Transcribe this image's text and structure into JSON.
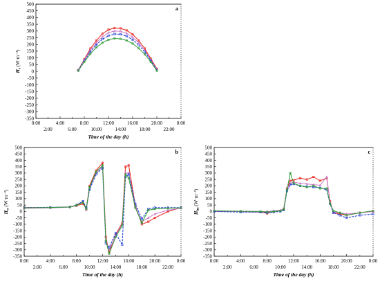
{
  "chart_data": [
    {
      "panel": "a",
      "type": "line",
      "xlabel": "Time of the day (h)",
      "ylabel_symbol": "H",
      "ylabel_sub": "s",
      "ylabel_unit": "(W·m⁻²)",
      "ylim": [
        -350,
        500
      ],
      "xlim": [
        0,
        24
      ],
      "yticks": [
        -350,
        -300,
        -250,
        -200,
        -150,
        -100,
        -50,
        0,
        50,
        100,
        150,
        200,
        250,
        300,
        350,
        400,
        450,
        500
      ],
      "xticks_top": [
        0,
        4,
        8,
        12,
        16,
        20,
        24
      ],
      "xticks_bottom": [
        2,
        6,
        10,
        14,
        18,
        22
      ],
      "xtick_labels_top": [
        "0:00",
        "4:00",
        "8:00",
        "12:00",
        "16:00",
        "20:00",
        "0:00"
      ],
      "xtick_labels_bottom": [
        "2:00",
        "6:00",
        "10:00",
        "14:00",
        "18:00",
        "22:00"
      ],
      "series": [
        {
          "color": "#e8221b",
          "x": [
            7,
            8,
            9,
            10,
            11,
            12,
            13,
            14,
            15,
            16,
            17,
            18,
            19,
            20
          ],
          "values": [
            10,
            90,
            170,
            230,
            280,
            310,
            322,
            320,
            305,
            275,
            230,
            170,
            95,
            20
          ]
        },
        {
          "color": "#c77ac8",
          "x": [
            7,
            8,
            9,
            10,
            11,
            12,
            13,
            14,
            15,
            16,
            17,
            18,
            19,
            20
          ],
          "values": [
            8,
            85,
            158,
            213,
            258,
            288,
            300,
            298,
            283,
            255,
            212,
            157,
            85,
            15
          ]
        },
        {
          "color": "#1f3fd6",
          "x": [
            7,
            8,
            9,
            10,
            11,
            12,
            13,
            14,
            15,
            16,
            17,
            18,
            19,
            20
          ],
          "values": [
            6,
            80,
            145,
            198,
            240,
            265,
            278,
            276,
            262,
            236,
            196,
            145,
            80,
            10
          ]
        },
        {
          "color": "#2e9a35",
          "x": [
            7,
            8,
            9,
            10,
            11,
            12,
            13,
            14,
            15,
            16,
            17,
            18,
            19,
            20
          ],
          "values": [
            5,
            70,
            130,
            178,
            213,
            235,
            245,
            242,
            230,
            207,
            172,
            127,
            70,
            5
          ]
        }
      ]
    },
    {
      "panel": "b",
      "type": "line",
      "xlabel": "Time of the day (h)",
      "ylabel_symbol": "H",
      "ylabel_sub": "w",
      "ylabel_unit": "(W·m⁻²)",
      "ylim": [
        -350,
        500
      ],
      "xlim": [
        0,
        24
      ],
      "yticks": [
        -350,
        -300,
        -250,
        -200,
        -150,
        -100,
        -50,
        0,
        50,
        100,
        150,
        200,
        250,
        300,
        350,
        400,
        450,
        500
      ],
      "xticks_top": [
        0,
        4,
        8,
        12,
        16,
        20,
        24
      ],
      "xticks_bottom": [
        2,
        6,
        10,
        14,
        18,
        22
      ],
      "xtick_labels_top": [
        "0:00",
        "4:00",
        "8:00",
        "12:00",
        "16:00",
        "20:00",
        "0:00"
      ],
      "xtick_labels_bottom": [
        "2:00",
        "6:00",
        "10:00",
        "14:00",
        "18:00",
        "22:00"
      ],
      "series": [
        {
          "color": "#e8221b",
          "x": [
            0,
            4,
            7,
            8,
            9,
            9.5,
            10,
            11,
            12,
            12.5,
            13,
            14,
            15,
            15.5,
            16,
            17,
            18,
            19,
            20,
            22,
            24
          ],
          "values": [
            30,
            30,
            35,
            45,
            60,
            20,
            200,
            320,
            380,
            -200,
            -320,
            -180,
            -90,
            350,
            360,
            50,
            -100,
            -80,
            -50,
            0,
            30
          ]
        },
        {
          "color": "#c77ac8",
          "x": [
            0,
            4,
            7,
            8,
            9,
            9.5,
            10,
            11,
            12,
            12.5,
            13,
            14,
            15,
            15.5,
            16,
            17,
            18,
            19,
            20,
            22,
            24
          ],
          "values": [
            25,
            28,
            33,
            50,
            80,
            10,
            180,
            300,
            350,
            -230,
            -300,
            -190,
            -100,
            300,
            300,
            40,
            -80,
            -50,
            -20,
            10,
            25
          ]
        },
        {
          "color": "#1f3fd6",
          "x": [
            0,
            4,
            7,
            8,
            9,
            9.5,
            10,
            11,
            12,
            12.5,
            13,
            14,
            15,
            15.5,
            16,
            17,
            18,
            19,
            20,
            22,
            24
          ],
          "values": [
            30,
            32,
            35,
            50,
            80,
            30,
            170,
            290,
            340,
            -250,
            -280,
            -170,
            -260,
            270,
            290,
            60,
            -60,
            20,
            30,
            30,
            30
          ]
        },
        {
          "color": "#2e9a35",
          "x": [
            0,
            4,
            7,
            8,
            9,
            9.5,
            10,
            11,
            12,
            12.5,
            13,
            14,
            15,
            15.5,
            16,
            17,
            18,
            19,
            20,
            22,
            24
          ],
          "values": [
            28,
            30,
            35,
            48,
            70,
            20,
            190,
            310,
            360,
            -230,
            -330,
            -200,
            -110,
            290,
            260,
            30,
            -90,
            10,
            20,
            25,
            28
          ]
        }
      ]
    },
    {
      "panel": "c",
      "type": "line",
      "xlabel": "Time of the day (h)",
      "ylabel_symbol": "H",
      "ylabel_sub": "ha",
      "ylabel_unit": "(W·m⁻²)",
      "ylim": [
        -350,
        500
      ],
      "xlim": [
        0,
        24
      ],
      "yticks": [
        -350,
        -300,
        -250,
        -200,
        -150,
        -100,
        -50,
        0,
        50,
        100,
        150,
        200,
        250,
        300,
        350,
        400,
        450,
        500
      ],
      "xticks_top": [
        0,
        4,
        8,
        12,
        16,
        20,
        24
      ],
      "xticks_bottom": [
        2,
        6,
        10,
        14,
        18,
        22
      ],
      "xtick_labels_top": [
        "0:00",
        "4:00",
        "8:00",
        "12:00",
        "16:00",
        "20:00",
        "0:00"
      ],
      "xtick_labels_bottom": [
        "2:00",
        "6:00",
        "10:00",
        "14:00",
        "18:00",
        "22:00"
      ],
      "series": [
        {
          "color": "#e8221b",
          "x": [
            0,
            4,
            7,
            8,
            9,
            10,
            10.5,
            11,
            11.5,
            12,
            13,
            14,
            15,
            16,
            17,
            17.5,
            18,
            19,
            20,
            22,
            24
          ],
          "values": [
            0,
            0,
            -5,
            -15,
            0,
            5,
            20,
            180,
            240,
            245,
            260,
            250,
            270,
            240,
            260,
            80,
            -10,
            -20,
            -30,
            -10,
            0
          ]
        },
        {
          "color": "#c77ac8",
          "x": [
            0,
            4,
            7,
            8,
            9,
            10,
            10.5,
            11,
            11.5,
            12,
            13,
            14,
            15,
            16,
            17,
            17.5,
            18,
            19,
            20,
            22,
            24
          ],
          "values": [
            2,
            0,
            0,
            0,
            5,
            10,
            20,
            170,
            220,
            230,
            220,
            215,
            210,
            205,
            270,
            70,
            -5,
            -10,
            -20,
            -10,
            0
          ]
        },
        {
          "color": "#1f3fd6",
          "x": [
            0,
            4,
            7,
            8,
            9,
            10,
            10.5,
            11,
            11.5,
            12,
            13,
            14,
            15,
            16,
            17,
            17.5,
            18,
            19,
            20,
            22,
            24
          ],
          "values": [
            0,
            -5,
            -5,
            -10,
            -5,
            0,
            10,
            160,
            210,
            215,
            200,
            195,
            190,
            185,
            170,
            60,
            -10,
            -30,
            -50,
            -30,
            -20
          ]
        },
        {
          "color": "#2e9a35",
          "x": [
            0,
            4,
            7,
            8,
            9,
            10,
            10.5,
            11,
            11.5,
            12,
            13,
            14,
            15,
            16,
            17,
            17.5,
            18,
            19,
            20,
            22,
            24
          ],
          "values": [
            5,
            2,
            0,
            -5,
            0,
            5,
            15,
            170,
            300,
            220,
            200,
            190,
            200,
            180,
            180,
            60,
            5,
            -10,
            -30,
            -10,
            5
          ]
        }
      ]
    }
  ]
}
